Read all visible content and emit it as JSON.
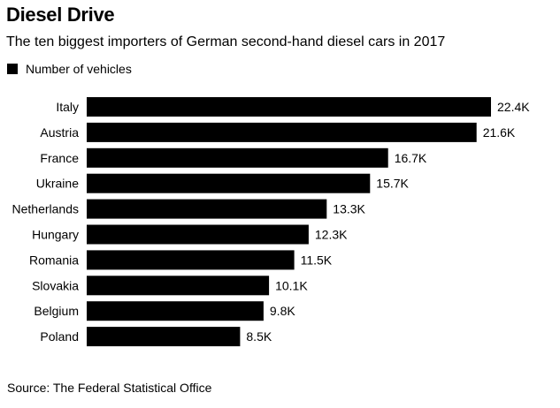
{
  "chart_data": {
    "type": "bar",
    "orientation": "horizontal",
    "title": "Diesel Drive",
    "subtitle": "The ten biggest importers of German second-hand diesel cars in 2017",
    "legend": [
      "Number of vehicles"
    ],
    "categories": [
      "Italy",
      "Austria",
      "France",
      "Ukraine",
      "Netherlands",
      "Hungary",
      "Romania",
      "Slovakia",
      "Belgium",
      "Poland"
    ],
    "series": [
      {
        "name": "Number of vehicles",
        "values": [
          22400,
          21600,
          16700,
          15700,
          13300,
          12300,
          11500,
          10100,
          9800,
          8500
        ],
        "labels": [
          "22.4K",
          "21.6K",
          "16.7K",
          "15.7K",
          "13.3K",
          "12.3K",
          "11.5K",
          "10.1K",
          "9.8K",
          "8.5K"
        ]
      }
    ],
    "xlim": [
      0,
      22400
    ],
    "grid": false,
    "source": "Source: The Federal Statistical Office"
  },
  "colors": {
    "bar": "#000000",
    "text": "#000000",
    "background": "#ffffff"
  }
}
